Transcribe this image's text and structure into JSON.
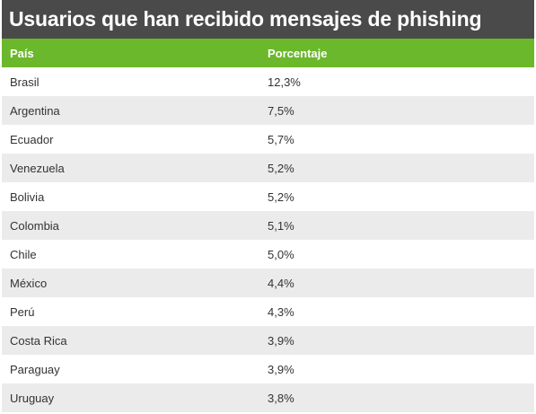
{
  "title": "Usuarios que han recibido mensajes de phishing",
  "columns": [
    "País",
    "Porcentaje"
  ],
  "rows": [
    {
      "country": "Brasil",
      "pct": "12,3%"
    },
    {
      "country": "Argentina",
      "pct": "7,5%"
    },
    {
      "country": "Ecuador",
      "pct": "5,7%"
    },
    {
      "country": "Venezuela",
      "pct": "5,2%"
    },
    {
      "country": "Bolivia",
      "pct": "5,2%"
    },
    {
      "country": "Colombia",
      "pct": "5,1%"
    },
    {
      "country": "Chile",
      "pct": "5,0%"
    },
    {
      "country": "México",
      "pct": "4,4%"
    },
    {
      "country": "Perú",
      "pct": "4,3%"
    },
    {
      "country": "Costa Rica",
      "pct": "3,9%"
    },
    {
      "country": "Paraguay",
      "pct": "3,9%"
    },
    {
      "country": "Uruguay",
      "pct": "3,8%"
    }
  ],
  "colors": {
    "title_bg": "#4a4a4a",
    "header_bg": "#6cb82c",
    "stripe_bg": "#ebebeb"
  },
  "chart_data": {
    "type": "table",
    "title": "Usuarios que han recibido mensajes de phishing",
    "columns": [
      "País",
      "Porcentaje"
    ],
    "categories": [
      "Brasil",
      "Argentina",
      "Ecuador",
      "Venezuela",
      "Bolivia",
      "Colombia",
      "Chile",
      "México",
      "Perú",
      "Costa Rica",
      "Paraguay",
      "Uruguay"
    ],
    "values": [
      12.3,
      7.5,
      5.7,
      5.2,
      5.2,
      5.1,
      5.0,
      4.4,
      4.3,
      3.9,
      3.9,
      3.8
    ]
  }
}
